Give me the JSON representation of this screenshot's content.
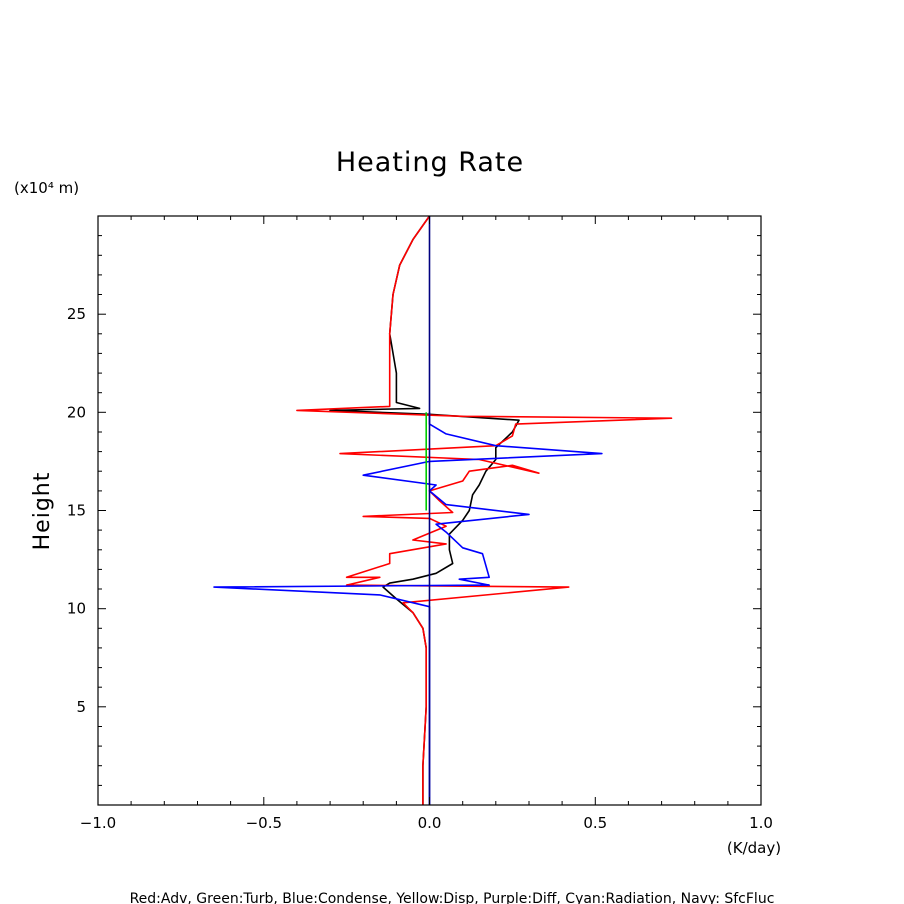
{
  "chart_data": {
    "type": "line",
    "title": "Heating Rate",
    "xlabel": "(K/day)",
    "ylabel": "Height",
    "yunit": "(x10⁴ m)",
    "caption": "Red:Adv, Green:Turb, Blue:Condense, Yellow:Disp, Purple:Diff, Cyan:Radiation, Navy: SfcFluc",
    "xlim": [
      -1.0,
      1.0
    ],
    "ylim": [
      0,
      30
    ],
    "xticks": [
      -1.0,
      -0.5,
      0.0,
      0.5,
      1.0
    ],
    "xtick_labels": [
      "−1.0",
      "−0.5",
      "0.0",
      "0.5",
      "1.0"
    ],
    "yticks": [
      5,
      10,
      15,
      20,
      25
    ],
    "ytick_labels": [
      "5",
      "10",
      "15",
      "20",
      "25"
    ],
    "grid": false,
    "legend": "none",
    "series": [
      {
        "color": "#000000",
        "points": [
          [
            -0.02,
            0
          ],
          [
            -0.02,
            2
          ],
          [
            -0.01,
            5
          ],
          [
            -0.01,
            8
          ],
          [
            -0.02,
            9
          ],
          [
            -0.05,
            9.8
          ],
          [
            -0.1,
            10.5
          ],
          [
            -0.14,
            11.1
          ],
          [
            -0.12,
            11.3
          ],
          [
            -0.05,
            11.5
          ],
          [
            0.02,
            11.8
          ],
          [
            0.07,
            12.3
          ],
          [
            0.06,
            13
          ],
          [
            0.06,
            13.8
          ],
          [
            0.1,
            14.5
          ],
          [
            0.12,
            15
          ],
          [
            0.13,
            15.8
          ],
          [
            0.15,
            16.3
          ],
          [
            0.17,
            17
          ],
          [
            0.2,
            17.6
          ],
          [
            0.2,
            18.2
          ],
          [
            0.25,
            19
          ],
          [
            0.27,
            19.6
          ],
          [
            0,
            19.9
          ],
          [
            -0.3,
            20.1
          ],
          [
            -0.03,
            20.2
          ],
          [
            -0.1,
            20.5
          ],
          [
            -0.1,
            22
          ],
          [
            -0.12,
            24
          ],
          [
            -0.11,
            26
          ],
          [
            -0.09,
            27.5
          ],
          [
            -0.05,
            28.8
          ],
          [
            0,
            30
          ]
        ]
      },
      {
        "color": "#ff0000",
        "points": [
          [
            -0.02,
            0
          ],
          [
            -0.02,
            2
          ],
          [
            -0.01,
            5
          ],
          [
            -0.01,
            8
          ],
          [
            -0.02,
            9
          ],
          [
            -0.05,
            9.8
          ],
          [
            -0.08,
            10.3
          ],
          [
            0.42,
            11.1
          ],
          [
            -0.25,
            11.2
          ],
          [
            -0.15,
            11.6
          ],
          [
            -0.25,
            11.6
          ],
          [
            -0.12,
            12.3
          ],
          [
            -0.12,
            12.8
          ],
          [
            0.05,
            13.3
          ],
          [
            -0.05,
            13.5
          ],
          [
            0.05,
            14.2
          ],
          [
            0,
            14.6
          ],
          [
            -0.2,
            14.7
          ],
          [
            0.07,
            14.9
          ],
          [
            0.03,
            15.5
          ],
          [
            0,
            16
          ],
          [
            0.1,
            16.5
          ],
          [
            0.12,
            17
          ],
          [
            0.25,
            17.3
          ],
          [
            0.33,
            16.9
          ],
          [
            0.15,
            17.6
          ],
          [
            -0.27,
            17.9
          ],
          [
            0.2,
            18.3
          ],
          [
            0.25,
            18.8
          ],
          [
            0.26,
            19.4
          ],
          [
            0.73,
            19.7
          ],
          [
            0.1,
            19.8
          ],
          [
            -0.4,
            20.1
          ],
          [
            -0.12,
            20.3
          ],
          [
            -0.12,
            20.8
          ],
          [
            -0.12,
            22.5
          ],
          [
            -0.12,
            24
          ],
          [
            -0.11,
            26
          ],
          [
            -0.09,
            27.5
          ],
          [
            -0.05,
            28.8
          ],
          [
            0,
            30
          ]
        ]
      },
      {
        "color": "#0000ff",
        "points": [
          [
            0,
            0
          ],
          [
            0,
            10.1
          ],
          [
            -0.15,
            10.7
          ],
          [
            -0.65,
            11.1
          ],
          [
            0.18,
            11.2
          ],
          [
            0.09,
            11.5
          ],
          [
            0.18,
            11.6
          ],
          [
            0.16,
            12.8
          ],
          [
            0.1,
            13.1
          ],
          [
            0.05,
            13.9
          ],
          [
            0.02,
            14.3
          ],
          [
            0.3,
            14.8
          ],
          [
            0.05,
            15.3
          ],
          [
            0,
            16
          ],
          [
            0.02,
            16.3
          ],
          [
            -0.2,
            16.8
          ],
          [
            0,
            17.5
          ],
          [
            0.52,
            17.9
          ],
          [
            0.2,
            18.3
          ],
          [
            0.05,
            18.9
          ],
          [
            0,
            19.4
          ],
          [
            0,
            20
          ]
        ]
      },
      {
        "color": "#00cc00",
        "points": [
          [
            -0.01,
            15
          ],
          [
            -0.01,
            20
          ]
        ]
      },
      {
        "color": "#000080",
        "points": [
          [
            0,
            0
          ],
          [
            0,
            30
          ]
        ]
      }
    ]
  }
}
